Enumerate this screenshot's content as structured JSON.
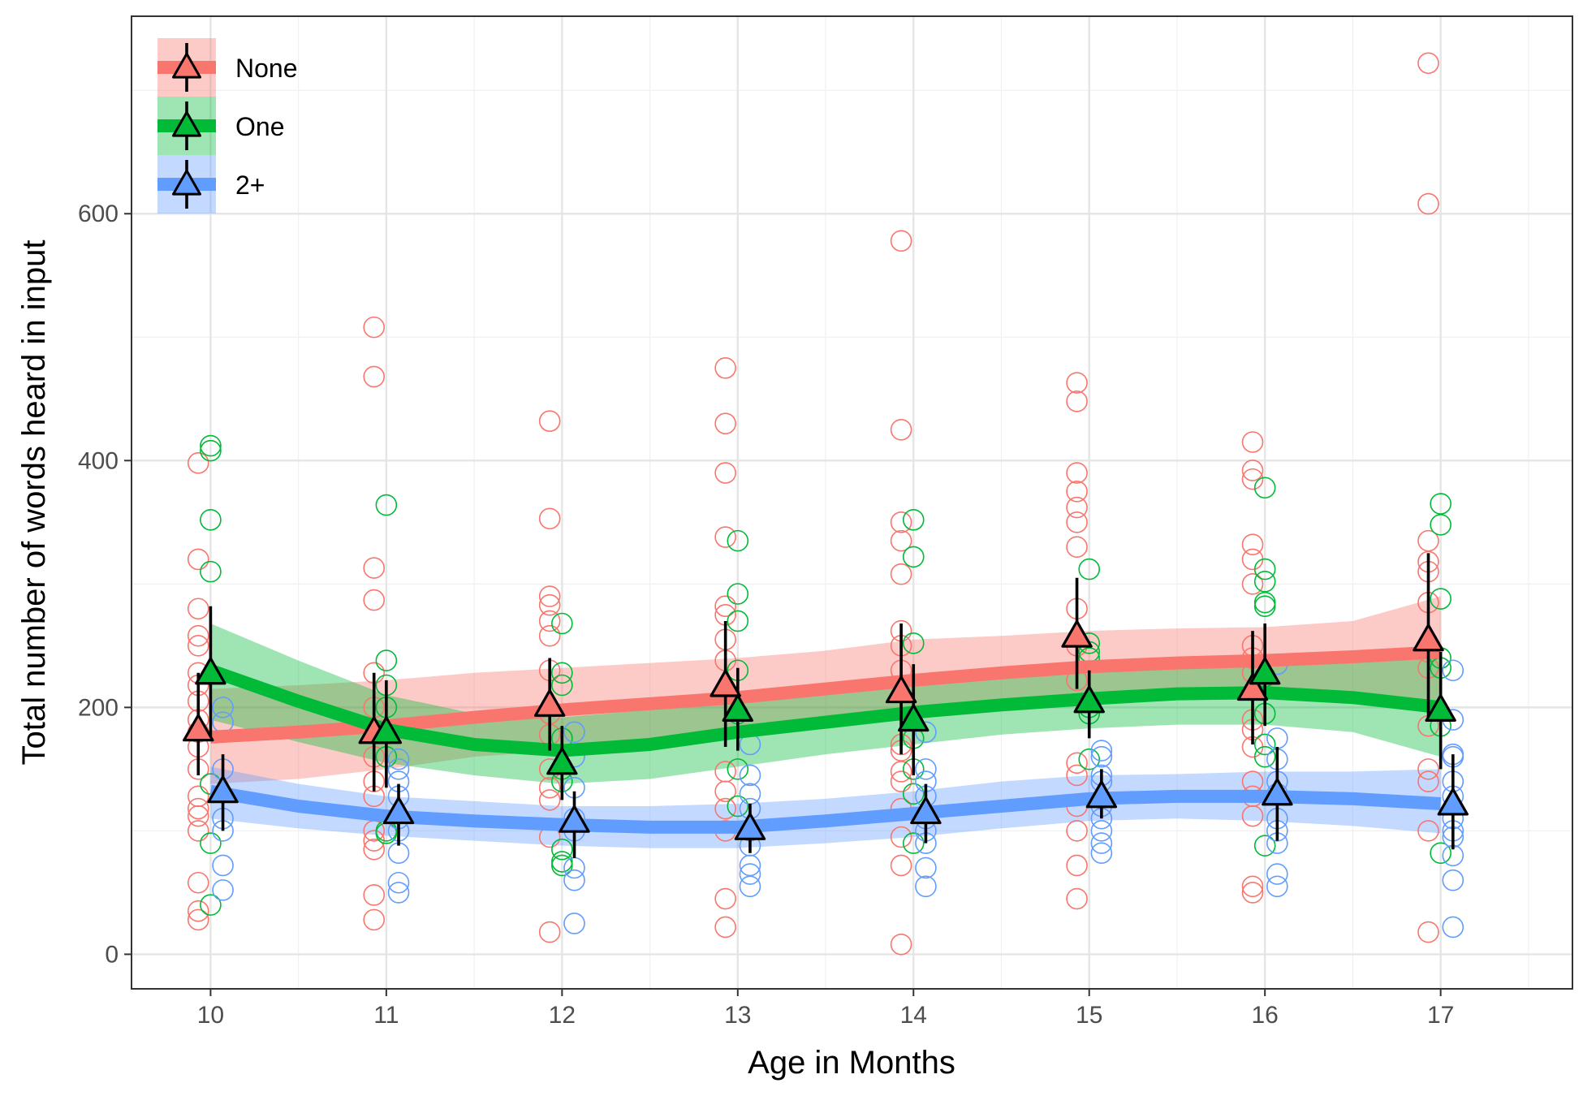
{
  "chart_data": {
    "type": "scatter",
    "title": "",
    "xlabel": "Age in Months",
    "ylabel": "Total number of words heard in input",
    "xlim": [
      9.55,
      17.75
    ],
    "ylim": [
      -28,
      760
    ],
    "x_ticks": [
      10,
      11,
      12,
      13,
      14,
      15,
      16,
      17
    ],
    "y_ticks": [
      0,
      200,
      400,
      600
    ],
    "grid": true,
    "legend_position": "top-left",
    "series": [
      {
        "name": "None",
        "color": "#F8766D",
        "offset": -0.07,
        "points": [
          [
            10,
            [
              398,
              320,
              280,
              258,
              250,
              228,
              218,
              205,
              190,
              180,
              168,
              150,
              128,
              118,
              112,
              100,
              58,
              35,
              28
            ]
          ],
          [
            11,
            [
              508,
              468,
              313,
              287,
              228,
              200,
              180,
              160,
              140,
              128,
              100,
              92,
              85,
              48,
              28
            ]
          ],
          [
            12,
            [
              432,
              353,
              290,
              283,
              270,
              258,
              230,
              195,
              178,
              150,
              135,
              125,
              95,
              18
            ]
          ],
          [
            13,
            [
              475,
              430,
              390,
              338,
              282,
              275,
              255,
              238,
              148,
              132,
              118,
              100,
              45,
              22
            ]
          ],
          [
            14,
            [
              578,
              425,
              350,
              335,
              308,
              262,
              250,
              230,
              170,
              165,
              148,
              140,
              118,
              95,
              72,
              8
            ]
          ],
          [
            15,
            [
              463,
              448,
              390,
              375,
              362,
              350,
              330,
              280,
              250,
              222,
              155,
              145,
              120,
              100,
              72,
              45
            ]
          ],
          [
            16,
            [
              415,
              392,
              385,
              332,
              320,
              300,
              250,
              240,
              228,
              190,
              182,
              168,
              140,
              128,
              112,
              55,
              50
            ]
          ],
          [
            17,
            [
              722,
              608,
              335,
              318,
              310,
              285,
              245,
              232,
              185,
              150,
              140,
              100,
              18
            ]
          ]
        ],
        "means": [
          182,
          180,
          202,
          218,
          213,
          258,
          215,
          255
        ],
        "err_low": [
          145,
          132,
          165,
          168,
          162,
          215,
          170,
          190
        ],
        "err_high": [
          228,
          228,
          240,
          270,
          268,
          305,
          262,
          325
        ],
        "smooth": [
          [
            10.0,
            176,
            138,
            215
          ],
          [
            10.5,
            180,
            142,
            218
          ],
          [
            11.0,
            185,
            150,
            222
          ],
          [
            11.5,
            192,
            160,
            228
          ],
          [
            12.0,
            198,
            165,
            232
          ],
          [
            12.5,
            203,
            170,
            236
          ],
          [
            13.0,
            208,
            176,
            240
          ],
          [
            13.5,
            215,
            185,
            246
          ],
          [
            14.0,
            222,
            190,
            255
          ],
          [
            14.5,
            228,
            200,
            258
          ],
          [
            15.0,
            233,
            205,
            262
          ],
          [
            15.5,
            236,
            208,
            264
          ],
          [
            16.0,
            238,
            210,
            265
          ],
          [
            16.5,
            241,
            212,
            270
          ],
          [
            17.0,
            245,
            205,
            290
          ]
        ]
      },
      {
        "name": "One",
        "color": "#00BA38",
        "offset": 0.0,
        "points": [
          [
            10,
            [
              412,
              408,
              352,
              310,
              138,
              90,
              40
            ]
          ],
          [
            11,
            [
              364,
              238,
              218,
              200,
              180,
              160,
              100,
              98
            ]
          ],
          [
            12,
            [
              268,
              228,
              218,
              175,
              150,
              140,
              85,
              75,
              72
            ]
          ],
          [
            13,
            [
              335,
              292,
              270,
              230,
              195,
              150,
              120
            ]
          ],
          [
            14,
            [
              352,
              322,
              252,
              175,
              150,
              130,
              90
            ]
          ],
          [
            15,
            [
              312,
              252,
              245,
              240,
              200,
              195,
              158
            ]
          ],
          [
            16,
            [
              378,
              312,
              302,
              285,
              282,
              225,
              195,
              170,
              160,
              88
            ]
          ],
          [
            17,
            [
              365,
              348,
              288,
              240,
              232,
              185,
              82
            ]
          ]
        ],
        "means": [
          228,
          180,
          155,
          198,
          190,
          205,
          228,
          198
        ],
        "err_low": [
          175,
          135,
          125,
          165,
          145,
          175,
          185,
          150
        ],
        "err_high": [
          282,
          222,
          185,
          232,
          235,
          230,
          268,
          245
        ],
        "smooth": [
          [
            10.0,
            230,
            190,
            268
          ],
          [
            10.5,
            205,
            172,
            238
          ],
          [
            11.0,
            182,
            155,
            210
          ],
          [
            11.5,
            170,
            145,
            195
          ],
          [
            12.0,
            165,
            138,
            192
          ],
          [
            12.5,
            170,
            142,
            198
          ],
          [
            13.0,
            180,
            152,
            205
          ],
          [
            13.5,
            188,
            162,
            212
          ],
          [
            14.0,
            196,
            170,
            222
          ],
          [
            14.5,
            202,
            178,
            226
          ],
          [
            15.0,
            207,
            183,
            232
          ],
          [
            15.5,
            211,
            186,
            236
          ],
          [
            16.0,
            212,
            186,
            238
          ],
          [
            16.5,
            208,
            180,
            238
          ],
          [
            17.0,
            200,
            160,
            242
          ]
        ]
      },
      {
        "name": "2+",
        "color": "#619CFF",
        "offset": 0.07,
        "points": [
          [
            10,
            [
              200,
              188,
              150,
              110,
              100,
              72,
              52
            ]
          ],
          [
            11,
            [
              158,
              150,
              140,
              128,
              110,
              100,
              82,
              58,
              50
            ]
          ],
          [
            12,
            [
              180,
              160,
              135,
              110,
              100,
              70,
              60,
              25
            ]
          ],
          [
            13,
            [
              170,
              145,
              130,
              118,
              100,
              88,
              72,
              65,
              55
            ]
          ],
          [
            14,
            [
              180,
              150,
              140,
              128,
              110,
              100,
              90,
              70,
              55
            ]
          ],
          [
            15,
            [
              165,
              160,
              145,
              140,
              120,
              110,
              100,
              90,
              82
            ]
          ],
          [
            16,
            [
              235,
              175,
              158,
              140,
              130,
              110,
              100,
              90,
              65,
              55
            ]
          ],
          [
            17,
            [
              230,
              190,
              162,
              160,
              140,
              128,
              110,
              100,
              95,
              80,
              60,
              22
            ]
          ]
        ],
        "means": [
          132,
          115,
          108,
          102,
          115,
          128,
          130,
          122
        ],
        "err_low": [
          100,
          88,
          78,
          82,
          90,
          110,
          92,
          85
        ],
        "err_high": [
          162,
          138,
          132,
          122,
          138,
          150,
          168,
          162
        ],
        "smooth": [
          [
            10.0,
            132,
            110,
            152
          ],
          [
            10.5,
            120,
            102,
            138
          ],
          [
            11.0,
            112,
            96,
            128
          ],
          [
            11.5,
            108,
            92,
            124
          ],
          [
            12.0,
            105,
            88,
            120
          ],
          [
            12.5,
            103,
            86,
            120
          ],
          [
            13.0,
            103,
            86,
            122
          ],
          [
            13.5,
            108,
            90,
            126
          ],
          [
            14.0,
            114,
            95,
            132
          ],
          [
            14.5,
            120,
            102,
            140
          ],
          [
            15.0,
            126,
            108,
            145
          ],
          [
            15.5,
            128,
            110,
            146
          ],
          [
            16.0,
            128,
            108,
            148
          ],
          [
            16.5,
            126,
            104,
            148
          ],
          [
            17.0,
            122,
            98,
            150
          ]
        ]
      }
    ]
  }
}
